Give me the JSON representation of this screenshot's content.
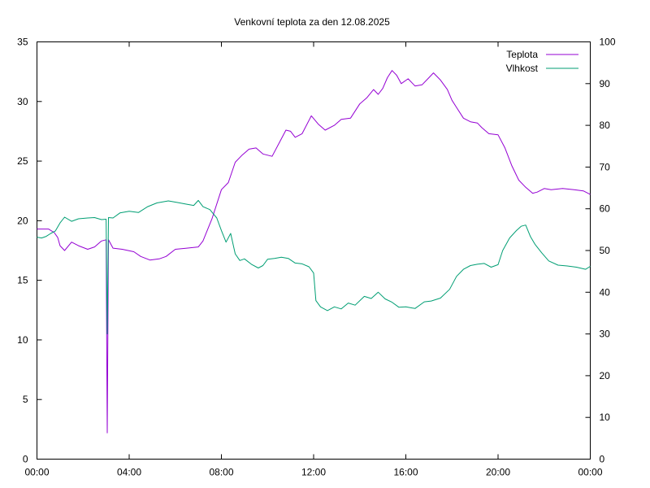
{
  "chart_data": {
    "type": "line",
    "title": "Venkovní teplota za den 12.08.2025",
    "x_ticks": [
      "00:00",
      "04:00",
      "08:00",
      "12:00",
      "16:00",
      "20:00",
      "00:00"
    ],
    "xlim_hours": [
      0,
      24
    ],
    "y_left": {
      "lim": [
        0,
        35
      ],
      "ticks": [
        "0",
        "5",
        "10",
        "15",
        "20",
        "25",
        "30",
        "35"
      ]
    },
    "y_right": {
      "lim": [
        0,
        100
      ],
      "ticks": [
        "0",
        "10",
        "20",
        "30",
        "40",
        "50",
        "60",
        "70",
        "80",
        "90",
        "100"
      ]
    },
    "grid": false,
    "legend_position": "top-right",
    "series": [
      {
        "name": "Teplota",
        "axis": "left",
        "color": "#9400d3",
        "points": [
          [
            0.0,
            19.3
          ],
          [
            0.5,
            19.3
          ],
          [
            0.75,
            19.0
          ],
          [
            0.9,
            18.6
          ],
          [
            1.0,
            17.9
          ],
          [
            1.2,
            17.5
          ],
          [
            1.5,
            18.2
          ],
          [
            1.8,
            17.9
          ],
          [
            2.2,
            17.6
          ],
          [
            2.5,
            17.8
          ],
          [
            2.8,
            18.3
          ],
          [
            3.0,
            18.4
          ],
          [
            3.05,
            2.2
          ],
          [
            3.1,
            18.4
          ],
          [
            3.3,
            17.7
          ],
          [
            3.7,
            17.6
          ],
          [
            4.2,
            17.4
          ],
          [
            4.5,
            17.0
          ],
          [
            4.9,
            16.7
          ],
          [
            5.3,
            16.8
          ],
          [
            5.6,
            17.0
          ],
          [
            6.0,
            17.6
          ],
          [
            6.5,
            17.7
          ],
          [
            7.0,
            17.8
          ],
          [
            7.2,
            18.3
          ],
          [
            7.6,
            20.2
          ],
          [
            8.0,
            22.6
          ],
          [
            8.3,
            23.2
          ],
          [
            8.6,
            24.9
          ],
          [
            8.9,
            25.5
          ],
          [
            9.2,
            26.0
          ],
          [
            9.5,
            26.1
          ],
          [
            9.8,
            25.6
          ],
          [
            10.2,
            25.4
          ],
          [
            10.5,
            26.5
          ],
          [
            10.8,
            27.6
          ],
          [
            11.0,
            27.5
          ],
          [
            11.2,
            27.0
          ],
          [
            11.5,
            27.3
          ],
          [
            11.9,
            28.8
          ],
          [
            12.2,
            28.1
          ],
          [
            12.5,
            27.6
          ],
          [
            12.9,
            28.0
          ],
          [
            13.2,
            28.5
          ],
          [
            13.6,
            28.6
          ],
          [
            14.0,
            29.8
          ],
          [
            14.3,
            30.3
          ],
          [
            14.6,
            31.0
          ],
          [
            14.8,
            30.6
          ],
          [
            15.0,
            31.1
          ],
          [
            15.2,
            32.0
          ],
          [
            15.4,
            32.6
          ],
          [
            15.6,
            32.2
          ],
          [
            15.8,
            31.5
          ],
          [
            16.1,
            31.9
          ],
          [
            16.4,
            31.3
          ],
          [
            16.7,
            31.4
          ],
          [
            17.0,
            32.0
          ],
          [
            17.2,
            32.4
          ],
          [
            17.5,
            31.8
          ],
          [
            17.8,
            31.0
          ],
          [
            18.0,
            30.1
          ],
          [
            18.2,
            29.5
          ],
          [
            18.5,
            28.6
          ],
          [
            18.8,
            28.3
          ],
          [
            19.1,
            28.2
          ],
          [
            19.3,
            27.8
          ],
          [
            19.6,
            27.3
          ],
          [
            20.0,
            27.2
          ],
          [
            20.3,
            26.1
          ],
          [
            20.6,
            24.6
          ],
          [
            20.9,
            23.4
          ],
          [
            21.2,
            22.8
          ],
          [
            21.5,
            22.3
          ],
          [
            21.7,
            22.4
          ],
          [
            22.0,
            22.7
          ],
          [
            22.3,
            22.6
          ],
          [
            22.8,
            22.7
          ],
          [
            23.3,
            22.6
          ],
          [
            23.7,
            22.5
          ],
          [
            24.0,
            22.2
          ]
        ]
      },
      {
        "name": "Vlhkost",
        "axis": "right",
        "color": "#009e73",
        "points": [
          [
            0.0,
            53.2
          ],
          [
            0.2,
            53.0
          ],
          [
            0.4,
            53.4
          ],
          [
            0.6,
            54.1
          ],
          [
            0.8,
            54.7
          ],
          [
            1.0,
            56.6
          ],
          [
            1.2,
            58.0
          ],
          [
            1.5,
            57.0
          ],
          [
            1.8,
            57.6
          ],
          [
            2.2,
            57.8
          ],
          [
            2.5,
            57.9
          ],
          [
            2.8,
            57.4
          ],
          [
            3.0,
            57.5
          ],
          [
            3.05,
            30.0
          ],
          [
            3.1,
            57.9
          ],
          [
            3.3,
            57.8
          ],
          [
            3.6,
            59.0
          ],
          [
            4.0,
            59.4
          ],
          [
            4.4,
            59.1
          ],
          [
            4.8,
            60.5
          ],
          [
            5.2,
            61.4
          ],
          [
            5.7,
            61.9
          ],
          [
            6.1,
            61.5
          ],
          [
            6.5,
            61.1
          ],
          [
            6.8,
            60.8
          ],
          [
            7.0,
            62.0
          ],
          [
            7.2,
            60.5
          ],
          [
            7.5,
            59.8
          ],
          [
            7.8,
            57.8
          ],
          [
            8.0,
            54.8
          ],
          [
            8.2,
            52.0
          ],
          [
            8.4,
            54.1
          ],
          [
            8.6,
            49.2
          ],
          [
            8.8,
            47.6
          ],
          [
            9.0,
            48.0
          ],
          [
            9.3,
            46.7
          ],
          [
            9.6,
            45.8
          ],
          [
            9.8,
            46.4
          ],
          [
            10.0,
            47.9
          ],
          [
            10.3,
            48.1
          ],
          [
            10.6,
            48.4
          ],
          [
            10.9,
            48.1
          ],
          [
            11.2,
            47.0
          ],
          [
            11.5,
            46.8
          ],
          [
            11.8,
            46.1
          ],
          [
            12.0,
            44.6
          ],
          [
            12.1,
            38.0
          ],
          [
            12.3,
            36.5
          ],
          [
            12.6,
            35.6
          ],
          [
            12.9,
            36.5
          ],
          [
            13.2,
            36.0
          ],
          [
            13.5,
            37.4
          ],
          [
            13.8,
            36.9
          ],
          [
            14.2,
            39.0
          ],
          [
            14.5,
            38.5
          ],
          [
            14.8,
            40.0
          ],
          [
            15.1,
            38.4
          ],
          [
            15.4,
            37.6
          ],
          [
            15.7,
            36.4
          ],
          [
            16.0,
            36.5
          ],
          [
            16.4,
            36.1
          ],
          [
            16.8,
            37.7
          ],
          [
            17.1,
            37.9
          ],
          [
            17.5,
            38.6
          ],
          [
            17.9,
            40.7
          ],
          [
            18.2,
            43.8
          ],
          [
            18.5,
            45.5
          ],
          [
            18.8,
            46.4
          ],
          [
            19.1,
            46.7
          ],
          [
            19.4,
            46.9
          ],
          [
            19.7,
            46.0
          ],
          [
            20.0,
            46.6
          ],
          [
            20.2,
            50.0
          ],
          [
            20.5,
            53.0
          ],
          [
            20.8,
            54.8
          ],
          [
            21.0,
            55.8
          ],
          [
            21.2,
            56.1
          ],
          [
            21.4,
            53.4
          ],
          [
            21.6,
            51.5
          ],
          [
            21.9,
            49.4
          ],
          [
            22.2,
            47.5
          ],
          [
            22.6,
            46.5
          ],
          [
            23.0,
            46.3
          ],
          [
            23.4,
            46.0
          ],
          [
            23.8,
            45.5
          ],
          [
            24.0,
            46.2
          ]
        ]
      }
    ]
  }
}
